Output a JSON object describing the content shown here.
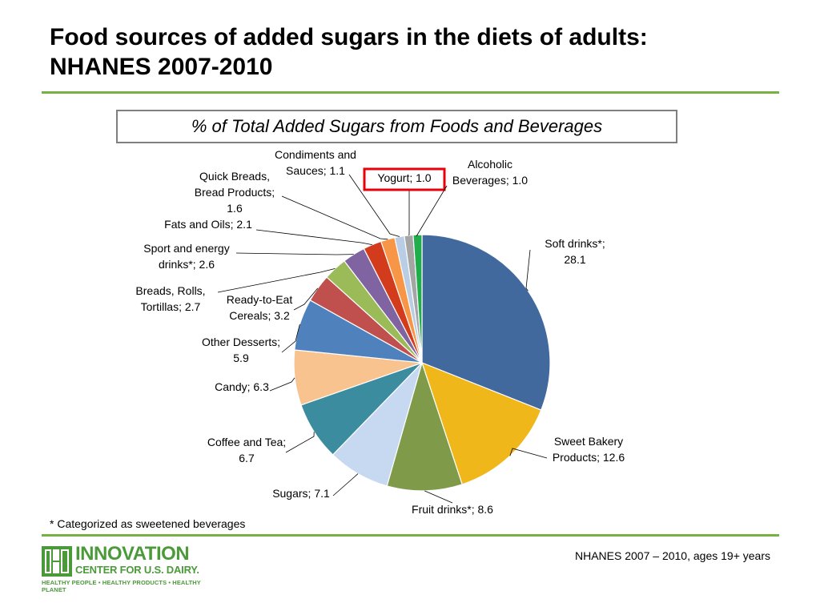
{
  "slide": {
    "title_line1": "Food sources of added sugars in the diets of adults:",
    "title_line2": "NHANES 2007-2010",
    "footnote": "* Categorized as sweetened beverages",
    "source": "NHANES 2007 – 2010, ages 19+ years"
  },
  "logo": {
    "line1": "INNOVATION",
    "line2": "CENTER FOR U.S. DAIRY.",
    "line3": "HEALTHY PEOPLE • HEALTHY PRODUCTS • HEALTHY PLANET"
  },
  "colors": {
    "accent_green": "#77b043",
    "logo_green": "#4b9a3a",
    "highlight_red": "#e8000b"
  },
  "chart_data": {
    "type": "pie",
    "title": "% of Total Added Sugars from Foods and Beverages",
    "start": "12 o'clock",
    "direction": "clockwise",
    "slices": [
      {
        "label": "Soft drinks*;",
        "label2": "28.1",
        "value": 28.1,
        "color": "#41699d"
      },
      {
        "label": "Sweet Bakery",
        "label2": "Products; 12.6",
        "value": 12.6,
        "color": "#f0b71a"
      },
      {
        "label": "Fruit drinks*; 8.6",
        "label2": "",
        "value": 8.6,
        "color": "#7f9a48"
      },
      {
        "label": "Sugars; 7.1",
        "label2": "",
        "value": 7.1,
        "color": "#c6d9f1"
      },
      {
        "label": "Coffee and Tea;",
        "label2": "6.7",
        "value": 6.7,
        "color": "#3b8c9f"
      },
      {
        "label": "Candy; 6.3",
        "label2": "",
        "value": 6.3,
        "color": "#f8c38f"
      },
      {
        "label": "Other Desserts;",
        "label2": "5.9",
        "value": 5.9,
        "color": "#4f81bd"
      },
      {
        "label": "Ready-to-Eat",
        "label2": "Cereals; 3.2",
        "value": 3.2,
        "color": "#c0504d"
      },
      {
        "label": "Breads, Rolls,",
        "label2": "Tortillas; 2.7",
        "value": 2.7,
        "color": "#9bbb59"
      },
      {
        "label": "Sport and energy",
        "label2": "drinks*; 2.6",
        "value": 2.6,
        "color": "#8064a2"
      },
      {
        "label": "Fats and Oils; 2.1",
        "label2": "",
        "value": 2.1,
        "color": "#d23b1c"
      },
      {
        "label": "Quick Breads,",
        "label2": "Bread Products;",
        "label3": "1.6",
        "value": 1.6,
        "color": "#f79646"
      },
      {
        "label": "Condiments and",
        "label2": "Sauces; 1.1",
        "value": 1.1,
        "color": "#b9cde5"
      },
      {
        "label": "Yogurt; 1.0",
        "label2": "",
        "value": 1.0,
        "color": "#a5a5a5",
        "highlighted": true
      },
      {
        "label": "Alcoholic",
        "label2": "Beverages; 1.0",
        "value": 1.0,
        "color": "#1fae4b"
      }
    ]
  }
}
